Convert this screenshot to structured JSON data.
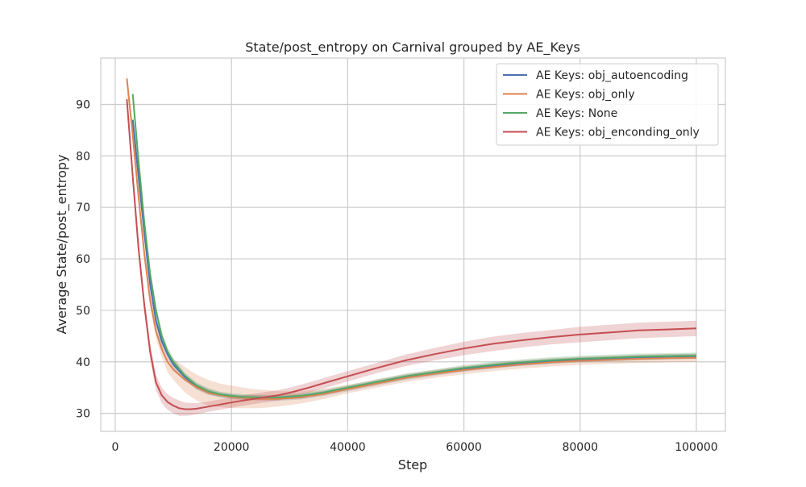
{
  "chart_data": {
    "type": "line",
    "title": "State/post_entropy on Carnival grouped by AE_Keys",
    "xlabel": "Step",
    "ylabel": "Average State/post_entropy",
    "xlim": [
      -2500,
      105000
    ],
    "ylim": [
      26.5,
      99
    ],
    "xticks": [
      0,
      20000,
      40000,
      60000,
      80000,
      100000
    ],
    "xtick_labels": [
      "0",
      "20000",
      "40000",
      "60000",
      "80000",
      "100000"
    ],
    "yticks": [
      30,
      40,
      50,
      60,
      70,
      80,
      90
    ],
    "ytick_labels": [
      "30",
      "40",
      "50",
      "60",
      "70",
      "80",
      "90"
    ],
    "grid": true,
    "legend_position": "top-right",
    "series": [
      {
        "name": "AE Keys: obj_autoencoding",
        "color": "#4c72b0",
        "x": [
          3000,
          4000,
          5000,
          6000,
          7000,
          8000,
          9000,
          10000,
          12000,
          14000,
          16000,
          18000,
          20000,
          22000,
          25000,
          28000,
          32000,
          36000,
          40000,
          45000,
          50000,
          55000,
          60000,
          65000,
          70000,
          75000,
          80000,
          85000,
          90000,
          95000,
          100000
        ],
        "y": [
          87,
          76,
          65,
          55,
          48,
          44,
          41.5,
          39.5,
          37,
          35.2,
          34.2,
          33.6,
          33.3,
          33.1,
          33,
          32.9,
          33.2,
          33.9,
          34.8,
          35.9,
          37,
          37.8,
          38.6,
          39.2,
          39.7,
          40.1,
          40.4,
          40.6,
          40.8,
          41,
          41.1
        ],
        "band": [
          1.5,
          1.5,
          1.5,
          1.2,
          1,
          1,
          0.8,
          0.8,
          0.6,
          0.6,
          0.6,
          0.5,
          0.5,
          0.5,
          0.5,
          0.5,
          0.5,
          0.5,
          0.5,
          0.5,
          0.5,
          0.5,
          0.5,
          0.5,
          0.5,
          0.5,
          0.5,
          0.5,
          0.5,
          0.5,
          0.5
        ]
      },
      {
        "name": "AE Keys: obj_only",
        "color": "#dd8452",
        "x": [
          2000,
          3000,
          4000,
          5000,
          6000,
          7000,
          8000,
          9000,
          10000,
          12000,
          14000,
          16000,
          18000,
          20000,
          22000,
          25000,
          28000,
          32000,
          36000,
          40000,
          45000,
          50000,
          55000,
          60000,
          65000,
          70000,
          75000,
          80000,
          85000,
          90000,
          95000,
          100000
        ],
        "y": [
          95,
          84,
          72,
          61,
          52,
          46,
          42.5,
          40,
          38.5,
          36.5,
          35,
          34,
          33.5,
          33.2,
          33,
          32.8,
          32.8,
          33.1,
          33.8,
          34.7,
          35.8,
          36.9,
          37.7,
          38.4,
          39,
          39.5,
          39.9,
          40.2,
          40.4,
          40.6,
          40.7,
          40.8
        ],
        "band": [
          1.5,
          1.5,
          1.5,
          1.5,
          1.5,
          1.5,
          1.5,
          2,
          2,
          2.5,
          2.5,
          2.5,
          2.3,
          2.2,
          2,
          1.8,
          1.5,
          1.2,
          1,
          0.8,
          0.8,
          0.8,
          0.8,
          0.8,
          0.8,
          0.8,
          0.8,
          0.8,
          0.8,
          0.8,
          0.8,
          0.8
        ]
      },
      {
        "name": "AE Keys: None",
        "color": "#55a868",
        "x": [
          3000,
          4000,
          5000,
          6000,
          7000,
          8000,
          9000,
          10000,
          12000,
          14000,
          16000,
          18000,
          20000,
          22000,
          25000,
          28000,
          32000,
          36000,
          40000,
          45000,
          50000,
          55000,
          60000,
          65000,
          70000,
          75000,
          80000,
          85000,
          90000,
          95000,
          100000
        ],
        "y": [
          92,
          79,
          67,
          57,
          50,
          45,
          42,
          40,
          37.3,
          35.4,
          34.3,
          33.7,
          33.4,
          33.2,
          33.1,
          33.1,
          33.4,
          34.1,
          35,
          36.1,
          37.2,
          38,
          38.8,
          39.4,
          39.9,
          40.3,
          40.6,
          40.8,
          41,
          41.1,
          41.2
        ],
        "band": [
          1.5,
          1.5,
          1.5,
          1.2,
          1,
          1,
          0.8,
          0.8,
          0.6,
          0.6,
          0.6,
          0.5,
          0.5,
          0.5,
          0.5,
          0.5,
          0.5,
          0.5,
          0.5,
          0.5,
          0.5,
          0.5,
          0.6,
          0.6,
          0.6,
          0.6,
          0.6,
          0.6,
          0.6,
          0.6,
          0.6
        ]
      },
      {
        "name": "AE Keys: obj_enconding_only",
        "color": "#c44e52",
        "x": [
          2000,
          3000,
          4000,
          5000,
          6000,
          7000,
          8000,
          9000,
          10000,
          11000,
          12000,
          13000,
          14000,
          16000,
          18000,
          20000,
          22000,
          25000,
          28000,
          30000,
          33000,
          36000,
          40000,
          45000,
          50000,
          55000,
          60000,
          65000,
          70000,
          75000,
          80000,
          85000,
          90000,
          95000,
          100000
        ],
        "y": [
          91,
          76,
          62,
          51,
          42,
          36,
          33.5,
          32.2,
          31.5,
          31,
          30.8,
          30.8,
          30.9,
          31.3,
          31.7,
          32.1,
          32.5,
          33,
          33.5,
          34,
          34.9,
          35.9,
          37.2,
          38.8,
          40.3,
          41.5,
          42.6,
          43.5,
          44.2,
          44.8,
          45.3,
          45.7,
          46.1,
          46.3,
          46.5
        ],
        "band": [
          1.5,
          1.5,
          1.5,
          1.5,
          1.5,
          1.5,
          1.5,
          1.5,
          1.5,
          1.5,
          1.3,
          1.2,
          1.1,
          1,
          1,
          1,
          1,
          1,
          1,
          1,
          1,
          1,
          1,
          1,
          1.1,
          1.2,
          1.3,
          1.4,
          1.4,
          1.4,
          1.5,
          1.5,
          1.5,
          1.5,
          1.5
        ]
      }
    ]
  }
}
